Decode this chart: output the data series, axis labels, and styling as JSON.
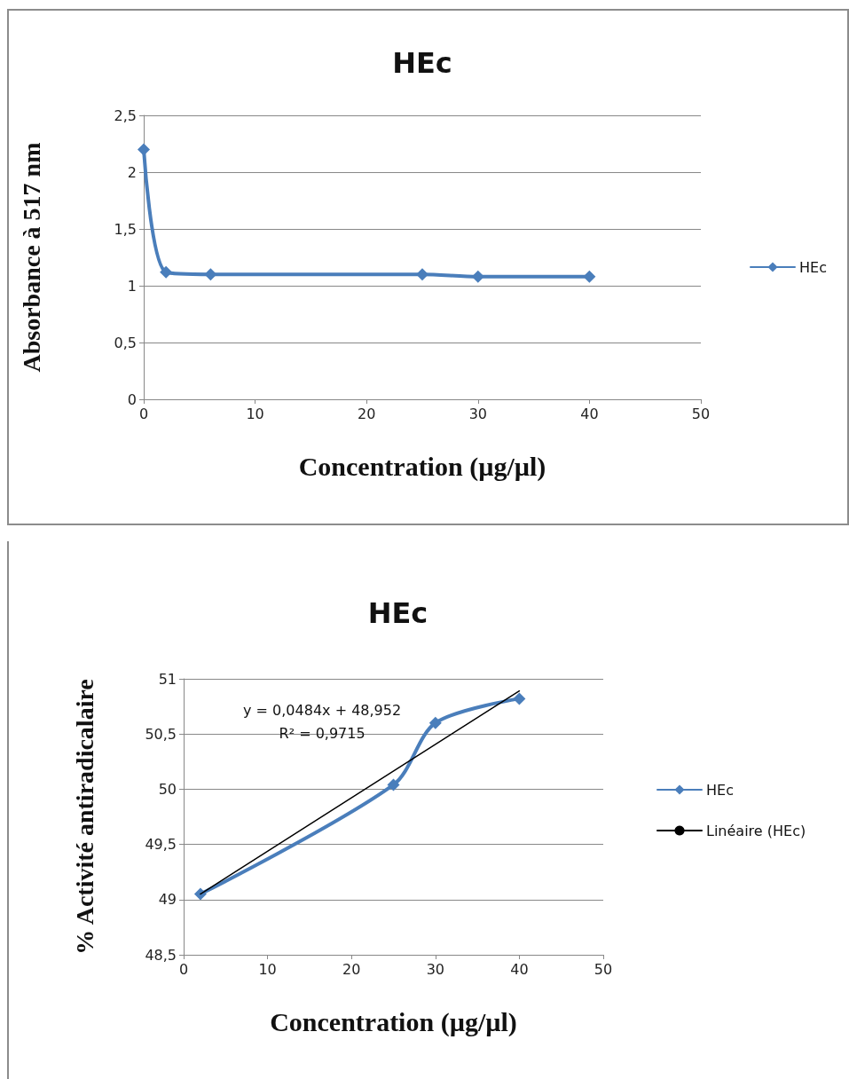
{
  "chart_data": [
    {
      "type": "line",
      "title": "HEc",
      "xlabel": "Concentration (µg/µl)",
      "ylabel": "Absorbance à 517 nm",
      "x": [
        0,
        2,
        6,
        25,
        30,
        40
      ],
      "series": [
        {
          "name": "HEc",
          "color": "#4a7ebb",
          "values": [
            2.2,
            1.12,
            1.1,
            1.1,
            1.08,
            1.08
          ]
        }
      ],
      "xlim": [
        0,
        50
      ],
      "xticks": [
        0,
        10,
        20,
        30,
        40,
        50
      ],
      "ylim": [
        0,
        2.5
      ],
      "yticks": [
        0,
        {
          "value": 0.5,
          "label": "0,5"
        },
        1,
        {
          "value": 1.5,
          "label": "1,5"
        },
        2,
        {
          "value": 2.5,
          "label": "2,5"
        }
      ],
      "grid": "y",
      "legend": "right",
      "marker": "diamond",
      "line_style": "solid"
    },
    {
      "type": "line",
      "title": "HEc",
      "xlabel": "Concentration (µg/µl)",
      "ylabel": "% Activité antiradicalaire",
      "x": [
        2,
        25,
        30,
        40
      ],
      "series": [
        {
          "name": "HEc",
          "color": "#4a7ebb",
          "values": [
            49.05,
            50.04,
            50.6,
            50.82
          ]
        },
        {
          "name": "Linéaire (HEc)",
          "color": "#000000",
          "x": [
            2,
            40
          ],
          "values": [
            49.05,
            50.89
          ],
          "marker": "none"
        }
      ],
      "xlim": [
        0,
        50
      ],
      "xticks": [
        0,
        10,
        20,
        30,
        40,
        50
      ],
      "ylim": [
        48.5,
        51
      ],
      "yticks": [
        {
          "value": 48.5,
          "label": "48,5"
        },
        49,
        {
          "value": 49.5,
          "label": "49,5"
        },
        50,
        {
          "value": 50.5,
          "label": "50,5"
        },
        51
      ],
      "annotations": [
        "y = 0,0484x + 48,952",
        "R² = 0,9715"
      ],
      "grid": "y",
      "legend": "right",
      "marker": "diamond",
      "line_style": "solid"
    }
  ]
}
